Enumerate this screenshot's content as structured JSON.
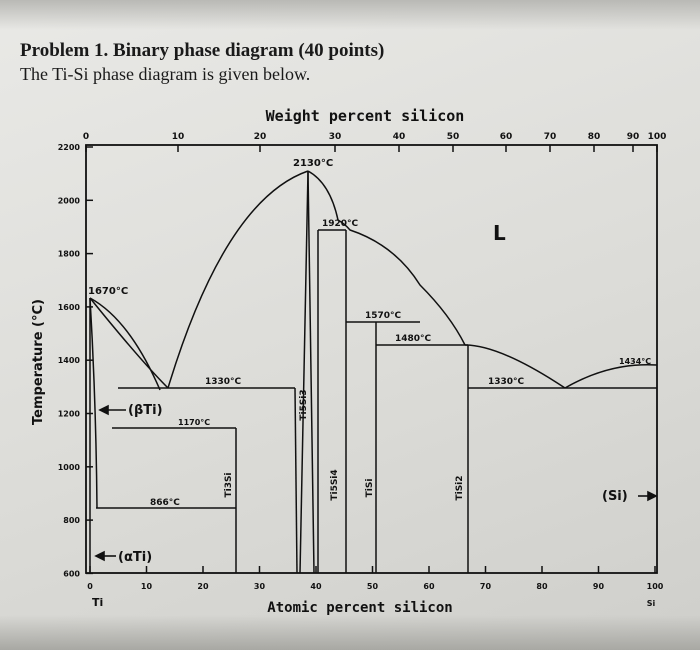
{
  "problem": {
    "title": "Problem 1. Binary phase diagram (40 points)",
    "subtitle": "The Ti-Si phase diagram is given below."
  },
  "diagram": {
    "top_axis_title": "Weight percent silicon",
    "top_ticks": [
      "0",
      "10",
      "20",
      "30",
      "40",
      "50",
      "60",
      "70",
      "80",
      "90",
      "100"
    ],
    "bottom_axis_title": "Atomic percent silicon",
    "bottom_ticks": [
      "0",
      "10",
      "20",
      "30",
      "40",
      "50",
      "60",
      "70",
      "80",
      "90",
      "100"
    ],
    "left_element": "Ti",
    "right_element": "Si",
    "y_axis_title": "Temperature (°C)",
    "y_ticks": [
      "2200",
      "2000",
      "1800",
      "1600",
      "1400",
      "1200",
      "1000",
      "800",
      "600"
    ],
    "temperatures": {
      "t2130": "2130°C",
      "t1920": "1920°C",
      "t1670": "1670°C",
      "t1570": "1570°C",
      "t1480": "1480°C",
      "t1434": "1434°C",
      "t1330a": "1330°C",
      "t1330b": "1330°C",
      "t1170": "1170°C",
      "t866": "866°C"
    },
    "phases": {
      "liquid": "L",
      "beta_ti": "(βTi)",
      "alpha_ti": "(αTi)",
      "si": "(Si)",
      "ti5si3": "Ti5Si3",
      "ti3si": "Ti3Si",
      "ti5si4": "Ti5Si4",
      "tisi": "TiSi",
      "tisi2": "TiSi2"
    }
  }
}
